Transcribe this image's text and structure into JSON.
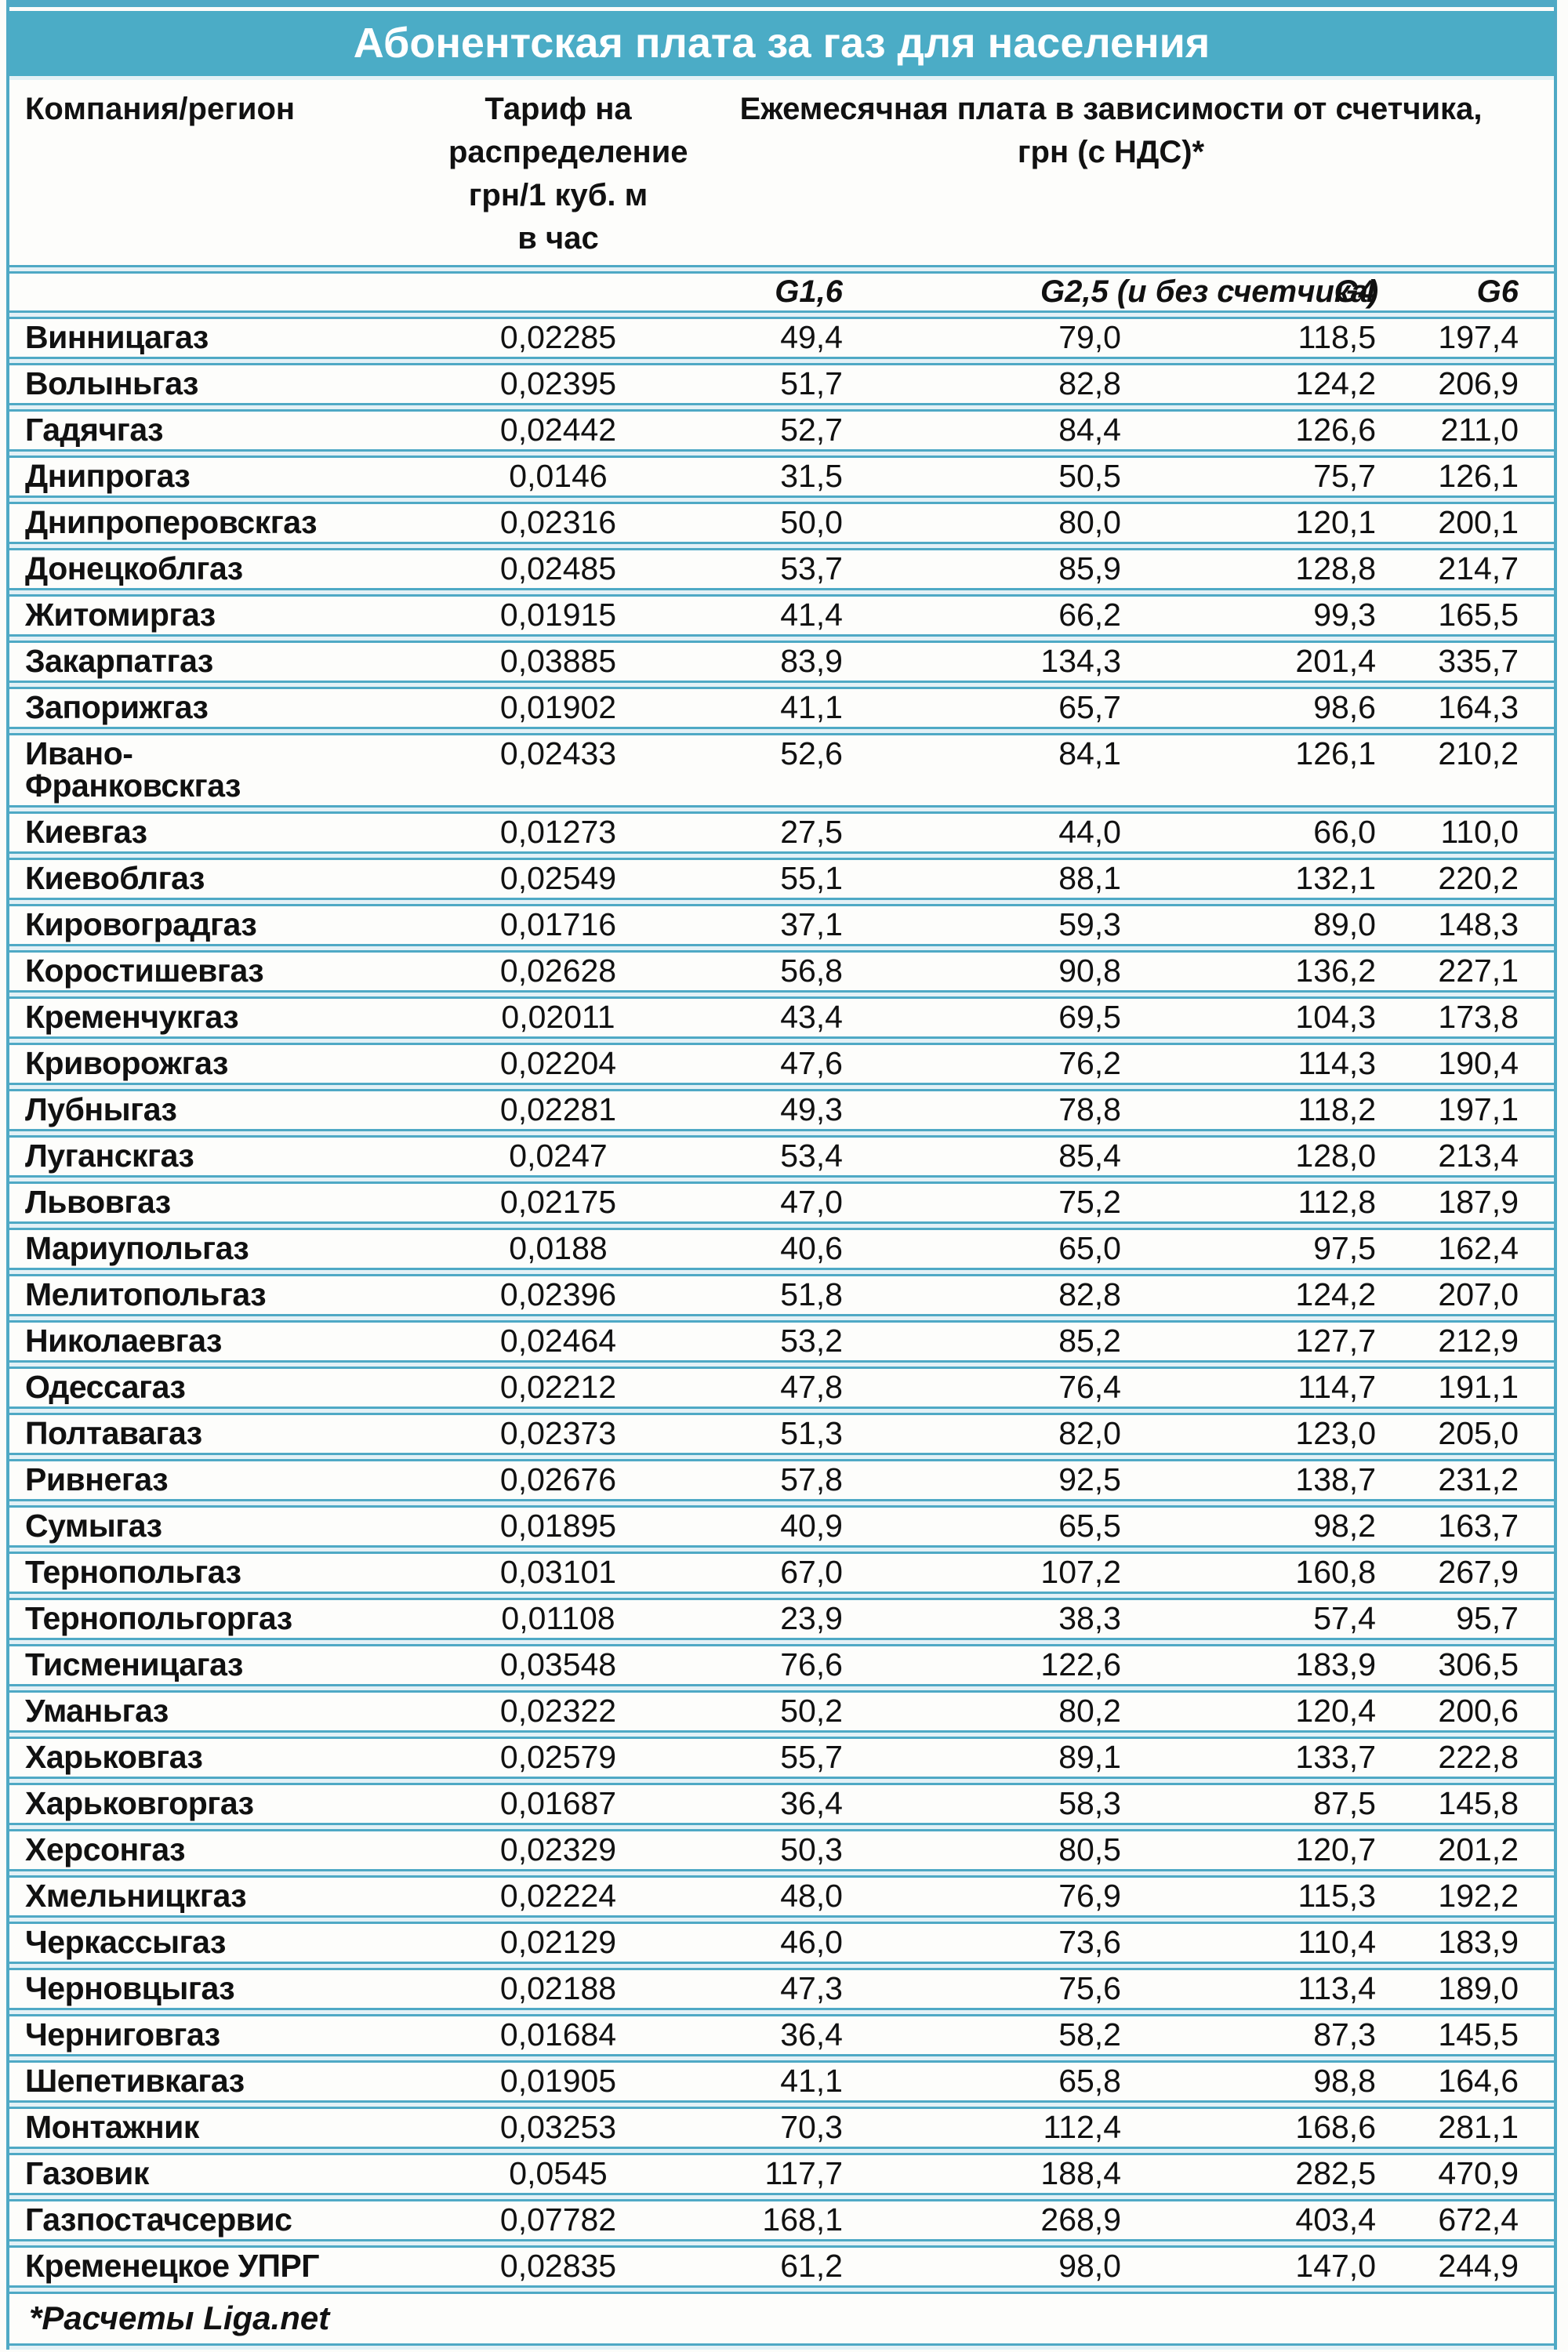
{
  "colors": {
    "accent": "#4BACC6",
    "border": "#4FA9C5",
    "row_bg": "#FDFDFB",
    "gap_bg": "#E3F1F6",
    "text": "#111111",
    "title_text": "#FFFFFF",
    "page_bg": "#FCFCFA"
  },
  "chart_data": {
    "type": "table",
    "title": "Абонентская плата за газ для населения",
    "header": {
      "company": "Компания/регион",
      "tariff_multiline": "Тариф на\nраспределение\nгрн/1 куб. м\nв час",
      "monthly_multiline": "Ежемесячная плата в зависимости от счетчика,\nгрн (с НДС)*",
      "meter_labels": [
        "G1,6",
        "G2,5 (и без счетчика)",
        "G4",
        "G6"
      ]
    },
    "columns": [
      "Компания/регион",
      "Тариф на распределение грн/1 куб. м в час",
      "G1,6",
      "G2,5 (и без счетчика)",
      "G4",
      "G6"
    ],
    "rows": [
      [
        "Винницагаз",
        "0,02285",
        "49,4",
        "79,0",
        "118,5",
        "197,4"
      ],
      [
        "Волыньгаз",
        "0,02395",
        "51,7",
        "82,8",
        "124,2",
        "206,9"
      ],
      [
        "Гадячгаз",
        "0,02442",
        "52,7",
        "84,4",
        "126,6",
        "211,0"
      ],
      [
        "Днипрогаз",
        "0,0146",
        "31,5",
        "50,5",
        "75,7",
        "126,1"
      ],
      [
        "Днипроперовскгаз",
        "0,02316",
        "50,0",
        "80,0",
        "120,1",
        "200,1"
      ],
      [
        "Донецкоблгаз",
        "0,02485",
        "53,7",
        "85,9",
        "128,8",
        "214,7"
      ],
      [
        "Житомиргаз",
        "0,01915",
        "41,4",
        "66,2",
        "99,3",
        "165,5"
      ],
      [
        "Закарпатгаз",
        "0,03885",
        "83,9",
        "134,3",
        "201,4",
        "335,7"
      ],
      [
        "Запорижгаз",
        "0,01902",
        "41,1",
        "65,7",
        "98,6",
        "164,3"
      ],
      [
        "Ивано-\nФранковскгаз",
        "0,02433",
        "52,6",
        "84,1",
        "126,1",
        "210,2"
      ],
      [
        "Киевгаз",
        "0,01273",
        "27,5",
        "44,0",
        "66,0",
        "110,0"
      ],
      [
        "Киевоблгаз",
        "0,02549",
        "55,1",
        "88,1",
        "132,1",
        "220,2"
      ],
      [
        "Кировоградгаз",
        "0,01716",
        "37,1",
        "59,3",
        "89,0",
        "148,3"
      ],
      [
        "Коростишевгаз",
        "0,02628",
        "56,8",
        "90,8",
        "136,2",
        "227,1"
      ],
      [
        "Кременчукгаз",
        "0,02011",
        "43,4",
        "69,5",
        "104,3",
        "173,8"
      ],
      [
        "Криворожгаз",
        "0,02204",
        "47,6",
        "76,2",
        "114,3",
        "190,4"
      ],
      [
        "Лубныгаз",
        "0,02281",
        "49,3",
        "78,8",
        "118,2",
        "197,1"
      ],
      [
        "Луганскгаз",
        "0,0247",
        "53,4",
        "85,4",
        "128,0",
        "213,4"
      ],
      [
        "Львовгаз",
        "0,02175",
        "47,0",
        "75,2",
        "112,8",
        "187,9"
      ],
      [
        "Мариупольгаз",
        "0,0188",
        "40,6",
        "65,0",
        "97,5",
        "162,4"
      ],
      [
        "Мелитопольгаз",
        "0,02396",
        "51,8",
        "82,8",
        "124,2",
        "207,0"
      ],
      [
        "Николаевгаз",
        "0,02464",
        "53,2",
        "85,2",
        "127,7",
        "212,9"
      ],
      [
        "Одессагаз",
        "0,02212",
        "47,8",
        "76,4",
        "114,7",
        "191,1"
      ],
      [
        "Полтавагаз",
        "0,02373",
        "51,3",
        "82,0",
        "123,0",
        "205,0"
      ],
      [
        "Ривнегаз",
        "0,02676",
        "57,8",
        "92,5",
        "138,7",
        "231,2"
      ],
      [
        "Сумыгаз",
        "0,01895",
        "40,9",
        "65,5",
        "98,2",
        "163,7"
      ],
      [
        "Тернопольгаз",
        "0,03101",
        "67,0",
        "107,2",
        "160,8",
        "267,9"
      ],
      [
        "Тернопольгоргаз",
        "0,01108",
        "23,9",
        "38,3",
        "57,4",
        "95,7"
      ],
      [
        "Тисменицагаз",
        "0,03548",
        "76,6",
        "122,6",
        "183,9",
        "306,5"
      ],
      [
        "Уманьгаз",
        "0,02322",
        "50,2",
        "80,2",
        "120,4",
        "200,6"
      ],
      [
        "Харьковгаз",
        "0,02579",
        "55,7",
        "89,1",
        "133,7",
        "222,8"
      ],
      [
        "Харьковгоргаз",
        "0,01687",
        "36,4",
        "58,3",
        "87,5",
        "145,8"
      ],
      [
        "Херсонгаз",
        "0,02329",
        "50,3",
        "80,5",
        "120,7",
        "201,2"
      ],
      [
        "Хмельницкгаз",
        "0,02224",
        "48,0",
        "76,9",
        "115,3",
        "192,2"
      ],
      [
        "Черкассыгаз",
        "0,02129",
        "46,0",
        "73,6",
        "110,4",
        "183,9"
      ],
      [
        "Черновцыгаз",
        "0,02188",
        "47,3",
        "75,6",
        "113,4",
        "189,0"
      ],
      [
        "Черниговгаз",
        "0,01684",
        "36,4",
        "58,2",
        "87,3",
        "145,5"
      ],
      [
        "Шепетивкагаз",
        "0,01905",
        "41,1",
        "65,8",
        "98,8",
        "164,6"
      ],
      [
        "Монтажник",
        "0,03253",
        "70,3",
        "112,4",
        "168,6",
        "281,1"
      ],
      [
        "Газовик",
        "0,0545",
        "117,7",
        "188,4",
        "282,5",
        "470,9"
      ],
      [
        "Газпостачсервис",
        "0,07782",
        "168,1",
        "268,9",
        "403,4",
        "672,4"
      ],
      [
        "Кременецкое УПРГ",
        "0,02835",
        "61,2",
        "98,0",
        "147,0",
        "244,9"
      ]
    ],
    "footnote": "*Расчеты Liga.net"
  }
}
